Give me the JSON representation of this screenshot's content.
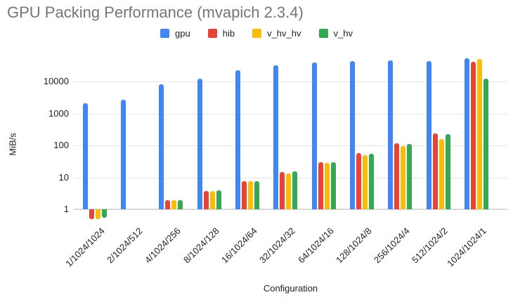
{
  "title": "GPU Packing Performance (mvapich 2.3.4)",
  "chart_data": {
    "type": "bar",
    "title": "GPU Packing Performance (mvapich 2.3.4)",
    "xlabel": "Configuration",
    "ylabel": "MiB/s",
    "y_scale": "log",
    "grid": true,
    "legend_position": "top",
    "y_ticks": [
      1,
      10,
      100,
      1000,
      10000
    ],
    "ylim": [
      0.5,
      60000
    ],
    "categories": [
      "1/1024/1024",
      "2/1024/512",
      "4/1024/256",
      "8/1024/128",
      "16/1024/64",
      "32/1024/32",
      "64/1024/16",
      "128/1024/8",
      "256/1024/4",
      "512/1024/2",
      "1024/1024/1"
    ],
    "series": [
      {
        "name": "gpu",
        "color": "#4285F4",
        "values": [
          2100,
          2700,
          8000,
          12500,
          22000,
          32000,
          39000,
          44000,
          46000,
          43000,
          52000
        ]
      },
      {
        "name": "hib",
        "color": "#EA4335",
        "values": [
          0.5,
          null,
          1.9,
          3.8,
          7.5,
          14.5,
          29,
          57,
          115,
          240,
          41000
        ]
      },
      {
        "name": "v_hv_hv",
        "color": "#FBBC04",
        "values": [
          0.5,
          null,
          1.9,
          3.7,
          7.4,
          13,
          28,
          49,
          95,
          160,
          51000
        ]
      },
      {
        "name": "v_hv",
        "color": "#34A853",
        "values": [
          0.55,
          null,
          1.9,
          3.9,
          7.7,
          15,
          30,
          55,
          110,
          230,
          12500
        ]
      }
    ]
  },
  "colors": {
    "title_text": "#757575",
    "axis_text": "#222222",
    "gridline": "#e6e6e6",
    "baseline": "#d9d9d9",
    "background": "#ffffff"
  }
}
